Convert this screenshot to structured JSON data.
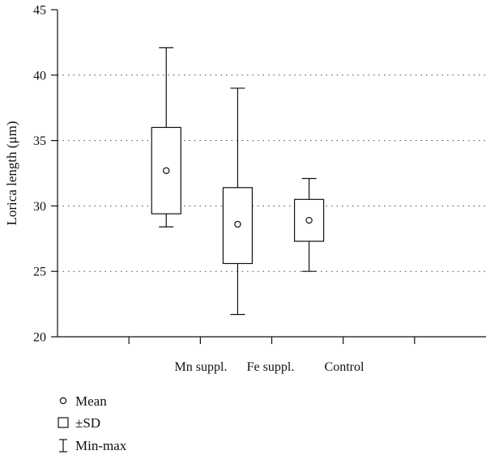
{
  "chart_data": {
    "type": "box",
    "ylabel": "Lorica length (μm)",
    "ylim": [
      20,
      45
    ],
    "yticks": [
      20,
      25,
      30,
      35,
      40,
      45
    ],
    "grid": "horizontal-dotted",
    "categories": [
      "Mn suppl.",
      "Fe suppl.",
      "Control"
    ],
    "boxes": [
      {
        "category": "Mn suppl.",
        "mean": 32.7,
        "sd_low": 29.4,
        "sd_high": 36.0,
        "min": 28.4,
        "max": 42.1
      },
      {
        "category": "Fe suppl.",
        "mean": 28.6,
        "sd_low": 25.6,
        "sd_high": 31.4,
        "min": 21.7,
        "max": 39.0
      },
      {
        "category": "Control",
        "mean": 28.9,
        "sd_low": 27.3,
        "sd_high": 30.5,
        "min": 25.0,
        "max": 32.1
      }
    ],
    "legend": {
      "placement": "bottom-left",
      "items": [
        {
          "symbol": "circle",
          "label": "Mean"
        },
        {
          "symbol": "square",
          "label": "±SD"
        },
        {
          "symbol": "whisker",
          "label": "Min-max"
        }
      ]
    }
  }
}
